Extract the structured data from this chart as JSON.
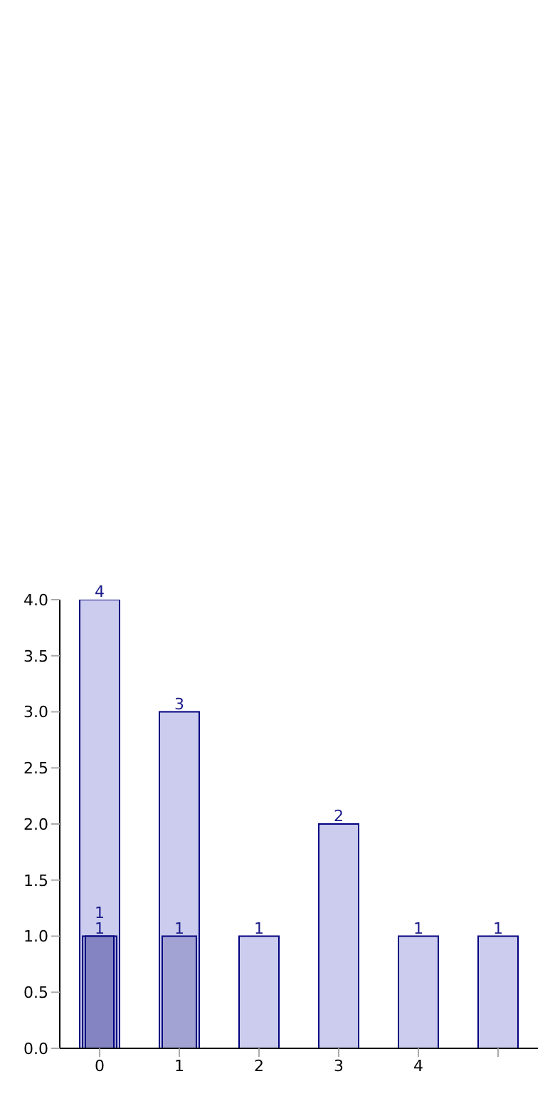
{
  "chart_data": {
    "type": "bar",
    "categories": [
      "0",
      "1",
      "2",
      "3",
      "4",
      null
    ],
    "series": [
      {
        "color": "#ccccee",
        "values": [
          4,
          3,
          1,
          2,
          1,
          1
        ]
      },
      {
        "color": "#a3a3d3",
        "values": [
          1,
          1,
          null,
          null,
          null,
          null
        ]
      },
      {
        "color": "#8484c2",
        "values": [
          1,
          null,
          null,
          null,
          null,
          null
        ]
      }
    ],
    "ylim": [
      0,
      4
    ],
    "yticks": [
      {
        "value": 0,
        "label": "0.0"
      },
      {
        "value": 0.5,
        "label": "0.5"
      },
      {
        "value": 1,
        "label": "1.0"
      },
      {
        "value": 1.5,
        "label": "1.5"
      },
      {
        "value": 2,
        "label": "2.0"
      },
      {
        "value": 2.5,
        "label": "2.5"
      },
      {
        "value": 3,
        "label": "3.0"
      },
      {
        "value": 3.5,
        "label": "3.5"
      },
      {
        "value": 4,
        "label": "4.0"
      }
    ],
    "data_labels": true,
    "grid": false,
    "legend": false
  }
}
